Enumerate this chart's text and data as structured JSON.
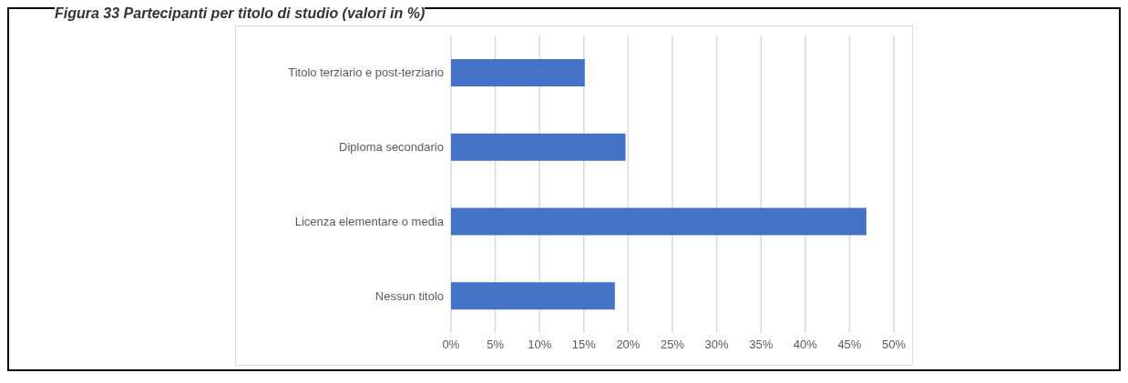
{
  "chart_data": {
    "type": "bar",
    "orientation": "horizontal",
    "title": "Figura 33 Partecipanti per titolo di studio (valori in %)",
    "categories": [
      "Titolo terziario e post-terziario",
      "Diploma secondario",
      "Licenza elementare o media",
      "Nessun titolo"
    ],
    "values": [
      15.1,
      19.7,
      46.9,
      18.5
    ],
    "color": "#4472c4",
    "xlim": [
      0,
      50
    ],
    "xticks": [
      {
        "value": 0,
        "label": "0%"
      },
      {
        "value": 5,
        "label": "5%"
      },
      {
        "value": 10,
        "label": "10%"
      },
      {
        "value": 15,
        "label": "15%"
      },
      {
        "value": 20,
        "label": "20%"
      },
      {
        "value": 25,
        "label": "25%"
      },
      {
        "value": 30,
        "label": "30%"
      },
      {
        "value": 35,
        "label": "35%"
      },
      {
        "value": 40,
        "label": "40%"
      },
      {
        "value": 45,
        "label": "45%"
      },
      {
        "value": 50,
        "label": "50%"
      }
    ],
    "grid": "x"
  }
}
